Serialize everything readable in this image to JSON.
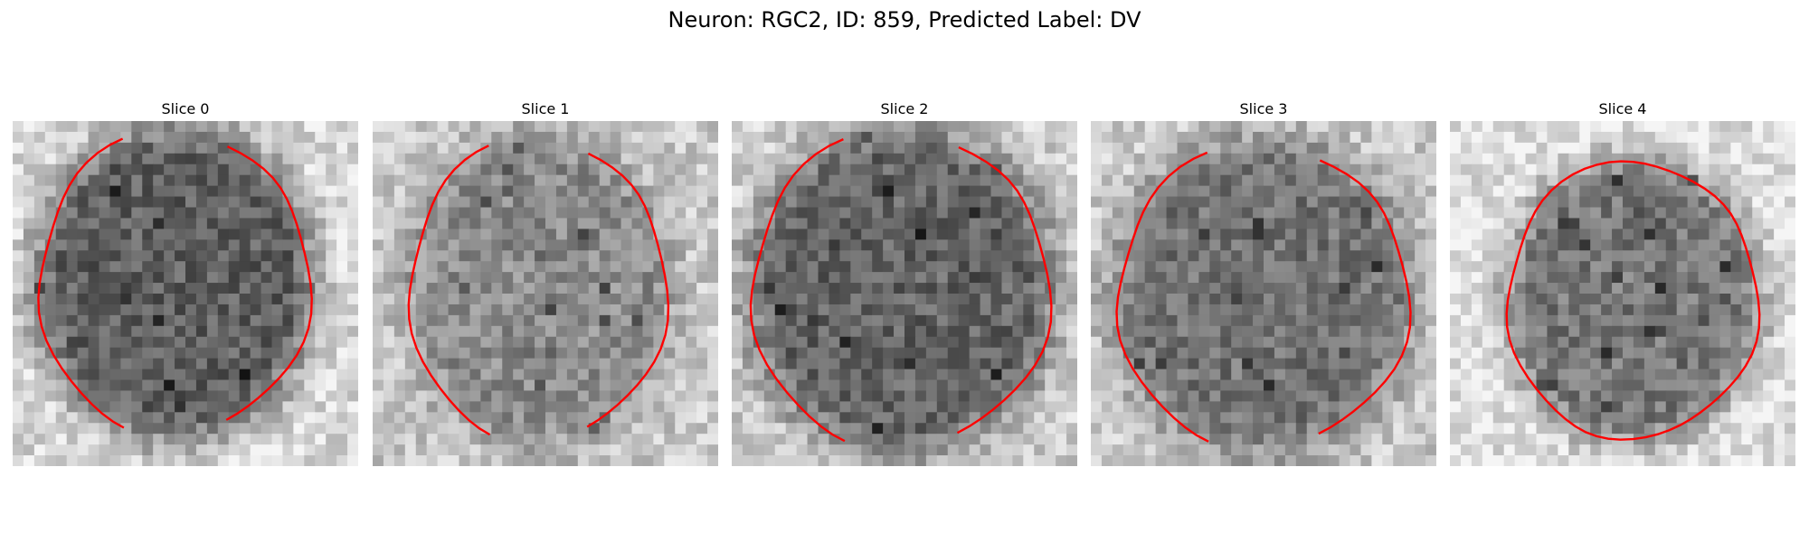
{
  "figure": {
    "title": "Neuron: RGC2, ID: 859, Predicted Label: DV"
  },
  "panels": [
    {
      "title": "Slice 0"
    },
    {
      "title": "Slice 1"
    },
    {
      "title": "Slice 2"
    },
    {
      "title": "Slice 3"
    },
    {
      "title": "Slice 4"
    }
  ],
  "colors": {
    "contour": "#ff0000",
    "background": "#ffffff"
  }
}
